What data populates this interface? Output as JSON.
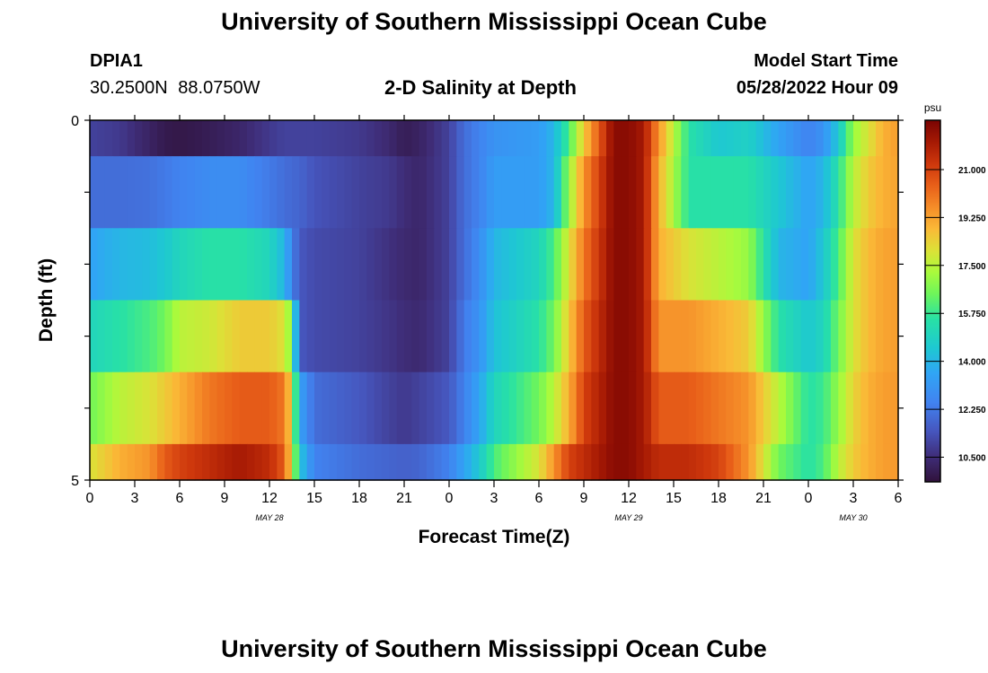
{
  "header": {
    "title": "University of Southern Mississippi Ocean Cube",
    "station": "DPIA1",
    "coordinates": "30.2500N  88.0750W",
    "subtitle": "2-D Salinity at Depth",
    "model_start_label": "Model Start Time",
    "model_start_value": "05/28/2022 Hour 09"
  },
  "footer": {
    "title": "University of Southern Mississippi Ocean Cube"
  },
  "chart_data": {
    "type": "heatmap",
    "xlabel": "Forecast Time(Z)",
    "ylabel": "Depth (ft)",
    "x_tick_labels": [
      "0",
      "3",
      "6",
      "9",
      "12",
      "15",
      "18",
      "21",
      "0",
      "3",
      "6",
      "9",
      "12",
      "15",
      "18",
      "21",
      "0",
      "3",
      "6"
    ],
    "x_range_hours": [
      0,
      54
    ],
    "date_labels": [
      {
        "label": "MAY 28",
        "hour": 12
      },
      {
        "label": "MAY 29",
        "hour": 36
      },
      {
        "label": "MAY 30",
        "hour": 51
      }
    ],
    "y_tick_labels": [
      "0",
      "5"
    ],
    "y_range_ft": [
      0,
      5
    ],
    "colorbar": {
      "unit": "psu",
      "min": 9.6,
      "max": 22.8,
      "tick_labels": [
        "10.500",
        "12.250",
        "14.000",
        "15.750",
        "17.500",
        "19.250",
        "21.000"
      ],
      "tick_values": [
        10.5,
        12.25,
        14.0,
        15.75,
        17.5,
        19.25,
        21.0
      ]
    },
    "profiles": {
      "hours": [
        0,
        2,
        4,
        5,
        6,
        8,
        10,
        12,
        13,
        13.5,
        14,
        15,
        18,
        20,
        21,
        22,
        24,
        25,
        26,
        27,
        30,
        31,
        32,
        33,
        35,
        36,
        37,
        38,
        40,
        42,
        44,
        46,
        48,
        49,
        50,
        51,
        52,
        53,
        54
      ],
      "rows": [
        {
          "depth": [
            0.0,
            0.5
          ],
          "values": [
            11.0,
            10.8,
            10.2,
            9.9,
            9.8,
            10.0,
            10.3,
            10.8,
            11.0,
            11.0,
            11.0,
            11.0,
            10.8,
            10.4,
            10.0,
            10.2,
            11.0,
            12.0,
            12.5,
            13.0,
            13.3,
            14.0,
            16.0,
            18.5,
            22.5,
            22.5,
            22.0,
            19.5,
            15.5,
            14.5,
            14.8,
            13.5,
            12.5,
            13.0,
            14.5,
            17.0,
            18.0,
            19.0,
            19.3
          ]
        },
        {
          "depth": [
            0.5,
            1.5
          ],
          "values": [
            12.0,
            12.0,
            12.1,
            12.3,
            12.5,
            12.8,
            12.8,
            12.3,
            12.0,
            11.9,
            11.8,
            11.4,
            11.0,
            10.8,
            10.5,
            10.3,
            11.0,
            12.0,
            12.5,
            13.3,
            13.3,
            14.0,
            17.0,
            19.5,
            22.5,
            22.5,
            22.0,
            19.0,
            15.5,
            15.5,
            15.5,
            14.5,
            13.5,
            14.0,
            15.5,
            17.5,
            18.5,
            19.0,
            19.2
          ]
        },
        {
          "depth": [
            1.5,
            2.5
          ],
          "values": [
            13.5,
            14.0,
            14.2,
            14.5,
            15.0,
            15.5,
            15.5,
            15.0,
            14.0,
            12.5,
            11.5,
            11.2,
            11.0,
            10.6,
            10.4,
            10.3,
            11.0,
            12.0,
            12.8,
            14.0,
            15.0,
            16.0,
            18.0,
            20.0,
            22.5,
            22.5,
            22.0,
            19.0,
            18.0,
            17.5,
            17.0,
            14.0,
            13.5,
            14.5,
            16.0,
            18.0,
            18.8,
            19.2,
            19.3
          ]
        },
        {
          "depth": [
            2.5,
            3.5
          ],
          "values": [
            15.0,
            15.5,
            16.0,
            16.5,
            17.5,
            17.8,
            18.5,
            18.5,
            18.0,
            16.5,
            11.5,
            11.2,
            11.0,
            10.7,
            10.5,
            10.4,
            11.0,
            12.3,
            13.0,
            14.3,
            15.5,
            16.5,
            18.5,
            20.5,
            22.5,
            22.5,
            22.0,
            19.5,
            19.5,
            19.0,
            18.5,
            15.5,
            14.5,
            15.0,
            16.5,
            18.0,
            18.8,
            19.2,
            19.3
          ]
        },
        {
          "depth": [
            3.5,
            4.5
          ],
          "values": [
            16.5,
            17.5,
            18.0,
            18.5,
            19.0,
            20.0,
            20.5,
            20.5,
            20.0,
            18.0,
            13.5,
            12.0,
            11.5,
            11.0,
            10.8,
            11.0,
            11.5,
            12.5,
            13.5,
            15.0,
            16.5,
            17.5,
            19.0,
            21.0,
            22.5,
            22.5,
            22.0,
            20.5,
            20.5,
            20.0,
            19.5,
            17.5,
            15.5,
            15.8,
            17.0,
            18.3,
            19.0,
            19.3,
            19.4
          ]
        },
        {
          "depth": [
            4.5,
            5.0
          ],
          "values": [
            18.0,
            19.0,
            19.5,
            20.5,
            21.0,
            21.5,
            22.0,
            21.5,
            20.5,
            18.0,
            14.5,
            12.5,
            12.0,
            11.8,
            11.7,
            11.8,
            12.5,
            13.5,
            14.5,
            16.0,
            18.0,
            19.5,
            21.0,
            21.5,
            22.5,
            22.5,
            22.0,
            21.5,
            21.5,
            21.0,
            19.5,
            16.5,
            15.5,
            16.0,
            17.5,
            18.5,
            19.0,
            19.3,
            19.4
          ]
        }
      ]
    }
  }
}
